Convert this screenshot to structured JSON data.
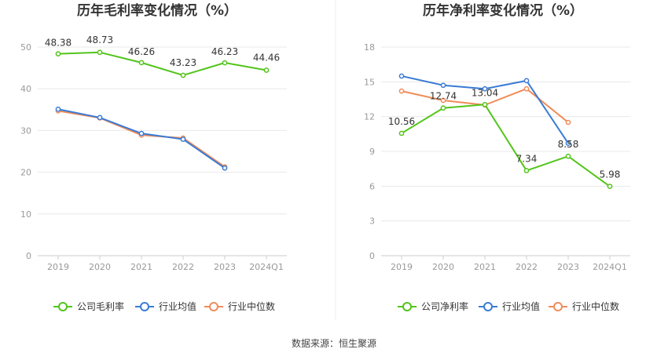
{
  "source_text": "数据来源：恒生聚源",
  "chart_data": [
    {
      "type": "line",
      "title": "历年毛利率变化情况（%）",
      "categories": [
        "2019",
        "2020",
        "2021",
        "2022",
        "2023",
        "2024Q1"
      ],
      "ylim": [
        0,
        50
      ],
      "yticks": [
        "0",
        "10",
        "20",
        "30",
        "40",
        "50"
      ],
      "grid": true,
      "legend_position": "bottom",
      "series": [
        {
          "name": "公司毛利率",
          "color": "#52c41a",
          "values": [
            48.38,
            48.73,
            46.26,
            43.23,
            46.23,
            44.46
          ],
          "labels": [
            "48.38",
            "48.73",
            "46.26",
            "43.23",
            "46.23",
            "44.46"
          ]
        },
        {
          "name": "行业均值",
          "color": "#3a7bd5",
          "values": [
            35.1,
            33.1,
            29.3,
            27.9,
            21.0,
            null
          ]
        },
        {
          "name": "行业中位数",
          "color": "#f08c5a",
          "values": [
            34.7,
            33.0,
            28.9,
            28.2,
            21.3,
            null
          ]
        }
      ]
    },
    {
      "type": "line",
      "title": "历年净利率变化情况（%）",
      "categories": [
        "2019",
        "2020",
        "2021",
        "2022",
        "2023",
        "2024Q1"
      ],
      "ylim": [
        0,
        18
      ],
      "yticks": [
        "0",
        "3",
        "6",
        "9",
        "12",
        "15",
        "18"
      ],
      "grid": true,
      "legend_position": "bottom",
      "series": [
        {
          "name": "公司净利率",
          "color": "#52c41a",
          "values": [
            10.56,
            12.74,
            13.04,
            7.34,
            8.58,
            5.98
          ],
          "labels": [
            "10.56",
            "12.74",
            "13.04",
            "7.34",
            "8.58",
            "5.98"
          ]
        },
        {
          "name": "行业均值",
          "color": "#3a7bd5",
          "values": [
            15.5,
            14.7,
            14.4,
            15.1,
            9.7,
            null
          ]
        },
        {
          "name": "行业中位数",
          "color": "#f08c5a",
          "values": [
            14.2,
            13.4,
            13.0,
            14.4,
            11.5,
            null
          ]
        }
      ]
    }
  ]
}
